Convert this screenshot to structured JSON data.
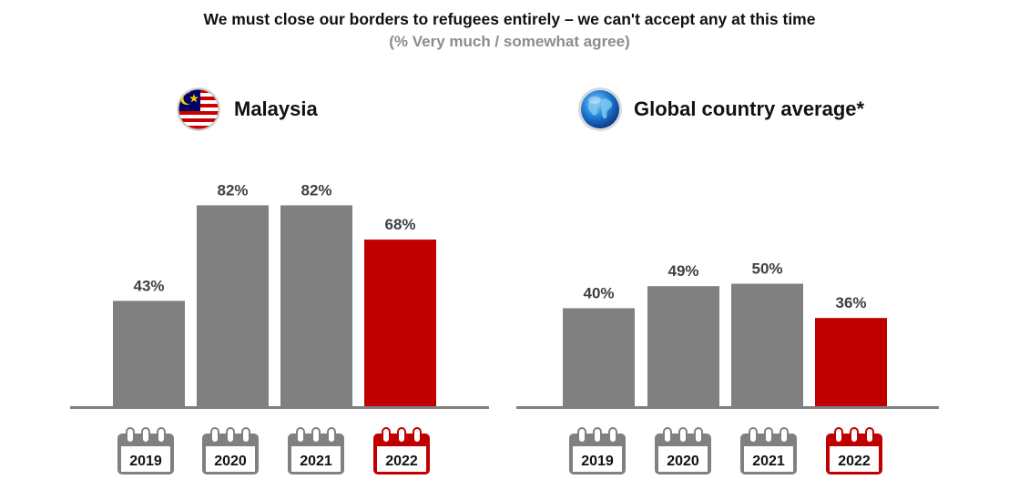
{
  "title": "We must close our borders to refugees entirely – we can't accept any at this time",
  "subtitle": "(% Very much / somewhat agree)",
  "colors": {
    "bar_default": "#808080",
    "bar_highlight": "#c00000",
    "axis": "#7f7f7f",
    "label": "#404040"
  },
  "chart_data": [
    {
      "type": "bar",
      "title": "Malaysia",
      "icon": "malaysia-flag-icon",
      "categories": [
        "2019",
        "2020",
        "2021",
        "2022"
      ],
      "values": [
        43,
        82,
        82,
        68
      ],
      "data_labels": [
        "43%",
        "82%",
        "82%",
        "68%"
      ],
      "highlight_category": "2022",
      "ylim": [
        0,
        100
      ],
      "grid": false,
      "category_icon": "calendar-icon"
    },
    {
      "type": "bar",
      "title": "Global country average*",
      "icon": "globe-icon",
      "categories": [
        "2019",
        "2020",
        "2021",
        "2022"
      ],
      "values": [
        40,
        49,
        50,
        36
      ],
      "data_labels": [
        "40%",
        "49%",
        "50%",
        "36%"
      ],
      "highlight_category": "2022",
      "ylim": [
        0,
        100
      ],
      "grid": false,
      "category_icon": "calendar-icon"
    }
  ]
}
